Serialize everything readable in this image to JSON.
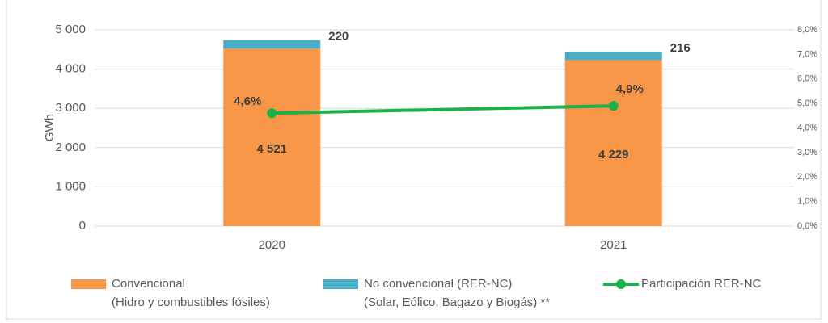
{
  "chart_data": {
    "type": "bar",
    "stacked": true,
    "y_label": "GWh",
    "categories": [
      "2020",
      "2021"
    ],
    "series": [
      {
        "name": "Convencional\n(Hidro y combustibles fósiles)",
        "color": "#F79646",
        "values": [
          4521,
          4229
        ],
        "value_labels": [
          "4 521",
          "4 229"
        ]
      },
      {
        "name": "No convencional (RER-NC)\n(Solar, Eólico, Bagazo y Biogás) **",
        "color": "#4BACC6",
        "values": [
          220,
          216
        ]
      },
      {
        "name": "Participación RER-NC",
        "type": "line",
        "axis": "y2",
        "color": "#1DB14B",
        "values": [
          4.6,
          4.9
        ],
        "value_labels": [
          "4,6%",
          "4,9%"
        ]
      }
    ],
    "ylim": [
      0,
      5000
    ],
    "yticks": [
      0,
      {
        "value": 1000,
        "label": "1 000"
      },
      {
        "value": 2000,
        "label": "2 000"
      },
      {
        "value": 3000,
        "label": "3 000"
      },
      {
        "value": 4000,
        "label": "4 000"
      },
      {
        "value": 5000,
        "label": "5 000"
      }
    ],
    "y2lim": [
      0,
      8
    ],
    "y2ticks": [
      {
        "value": 0,
        "label": "0,0%"
      },
      {
        "value": 1,
        "label": "1,0%"
      },
      {
        "value": 2,
        "label": "2,0%"
      },
      {
        "value": 3,
        "label": "3,0%"
      },
      {
        "value": 4,
        "label": "4,0%"
      },
      {
        "value": 5,
        "label": "5,0%"
      },
      {
        "value": 6,
        "label": "6,0%"
      },
      {
        "value": 7,
        "label": "7,0%"
      },
      {
        "value": 8,
        "label": "8,0%"
      }
    ],
    "grid": true
  }
}
